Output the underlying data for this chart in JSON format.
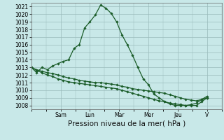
{
  "title": "Pression niveau de la mer( hPa )",
  "bg_color": "#c8e8e8",
  "grid_color": "#99bbbb",
  "line_color": "#1a5c28",
  "ylim": [
    1007.5,
    1021.5
  ],
  "yticks": [
    1008,
    1009,
    1010,
    1011,
    1012,
    1013,
    1014,
    1015,
    1016,
    1017,
    1018,
    1019,
    1020,
    1021
  ],
  "day_labels": [
    "Sam",
    "Lun",
    "Mar",
    "Mer",
    "Jeu",
    "V"
  ],
  "day_positions": [
    24,
    48,
    72,
    96,
    120,
    144
  ],
  "xlim": [
    0,
    156
  ],
  "series1": [
    1013.0,
    1012.3,
    1013.0,
    1012.7,
    1013.2,
    1013.5,
    1013.8,
    1014.0,
    1015.5,
    1016.0,
    1018.2,
    1019.0,
    1019.9,
    1021.2,
    1020.8,
    1020.1,
    1019.0,
    1017.3,
    1016.0,
    1014.6,
    1013.0,
    1011.5,
    1010.7,
    1009.5,
    1009.0,
    1008.5,
    1008.2,
    1008.0,
    1008.0,
    1008.0,
    1008.1,
    1008.3,
    1008.8,
    1009.0
  ],
  "series2": [
    1013.0,
    1012.7,
    1012.5,
    1012.3,
    1012.2,
    1012.0,
    1011.8,
    1011.6,
    1011.5,
    1011.3,
    1011.2,
    1011.1,
    1011.0,
    1011.0,
    1010.9,
    1010.8,
    1010.7,
    1010.5,
    1010.4,
    1010.2,
    1010.1,
    1010.0,
    1009.9,
    1009.8,
    1009.7,
    1009.6,
    1009.4,
    1009.2,
    1009.0,
    1008.8,
    1008.7,
    1008.6,
    1008.8,
    1009.2
  ],
  "series3": [
    1013.0,
    1012.6,
    1012.3,
    1012.0,
    1011.8,
    1011.5,
    1011.3,
    1011.1,
    1011.0,
    1010.9,
    1010.8,
    1010.7,
    1010.6,
    1010.5,
    1010.4,
    1010.3,
    1010.2,
    1010.0,
    1009.8,
    1009.6,
    1009.4,
    1009.2,
    1009.0,
    1008.8,
    1008.6,
    1008.5,
    1008.3,
    1008.2,
    1008.1,
    1008.0,
    1008.0,
    1008.0,
    1008.5,
    1009.0
  ],
  "tick_fontsize": 5.5,
  "title_fontsize": 7.5
}
